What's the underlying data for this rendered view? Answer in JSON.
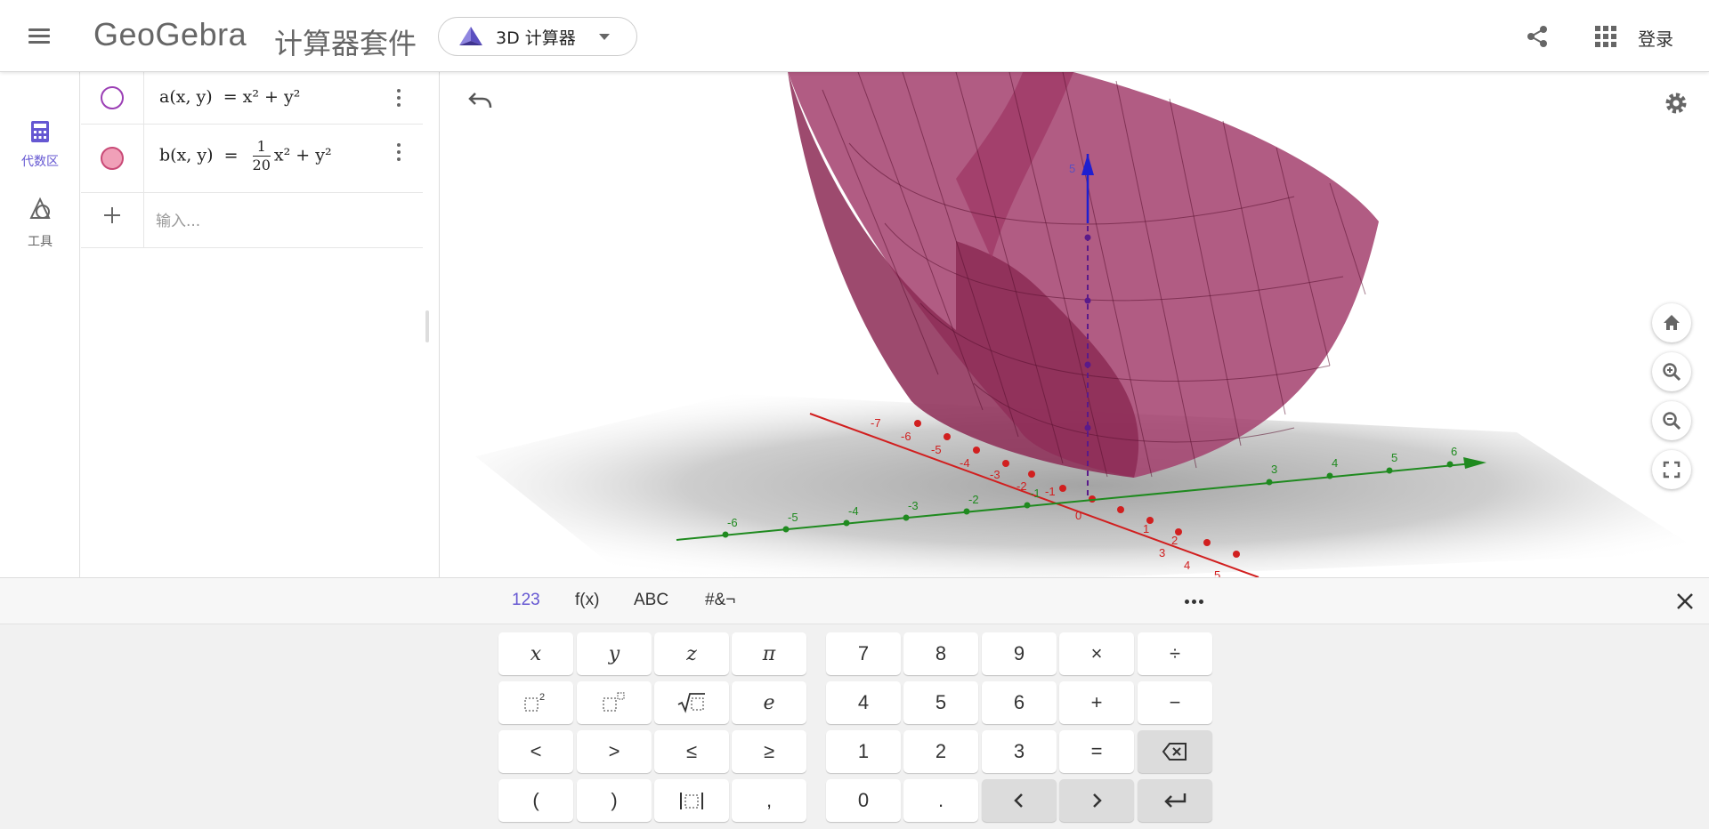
{
  "header": {
    "brand": "GeoGebra",
    "suite": "计算器套件",
    "app_label": "3D 计算器",
    "login": "登录"
  },
  "nav": {
    "algebra": "代数区",
    "tools": "工具"
  },
  "algebra": {
    "rows": [
      {
        "name": "a",
        "vars": "(x, y)",
        "eq": "=",
        "rhs": "x² + y²",
        "marble_color": "#ffffff",
        "marble_border": "#9b3fb5"
      },
      {
        "name": "b",
        "vars": "(x, y)",
        "eq": "=",
        "frac_num": "1",
        "frac_den": "20",
        "rhs": "x² + y²",
        "marble_color": "#f0a0b8",
        "marble_border": "#c94a77"
      }
    ],
    "input_placeholder": "输入..."
  },
  "keyboard": {
    "tabs": [
      "123",
      "f(x)",
      "ABC",
      "#&¬"
    ],
    "active_tab": "123",
    "left_keys": [
      [
        "x",
        "y",
        "z",
        "π"
      ],
      [
        "square",
        "power",
        "sqrt",
        "e"
      ],
      [
        "<",
        ">",
        "≤",
        "≥"
      ],
      [
        "(",
        ")",
        "abs",
        ","
      ]
    ],
    "right_keys": [
      [
        "7",
        "8",
        "9",
        "×",
        "÷"
      ],
      [
        "4",
        "5",
        "6",
        "+",
        "−"
      ],
      [
        "1",
        "2",
        "3",
        "=",
        "backspace"
      ],
      [
        "0",
        ".",
        "left-arrow",
        "right-arrow",
        "enter"
      ]
    ]
  },
  "axes": {
    "x_pos": [
      "1",
      "2",
      "3",
      "4",
      "5"
    ],
    "x_neg": [
      "-1",
      "-2",
      "-3",
      "-4",
      "-5",
      "-6",
      "-7"
    ],
    "y_pos": [
      "3",
      "4",
      "5",
      "6"
    ],
    "y_neg": [
      "-1",
      "-2",
      "-3",
      "-4",
      "-5",
      "-6"
    ],
    "z_top": "5",
    "origin": "0"
  },
  "colors": {
    "accent": "#6557d2",
    "surface": "#9c2d5c",
    "x_axis": "#d11f1f",
    "y_axis": "#1f8a1f",
    "z_axis": "#1f1fd1"
  }
}
